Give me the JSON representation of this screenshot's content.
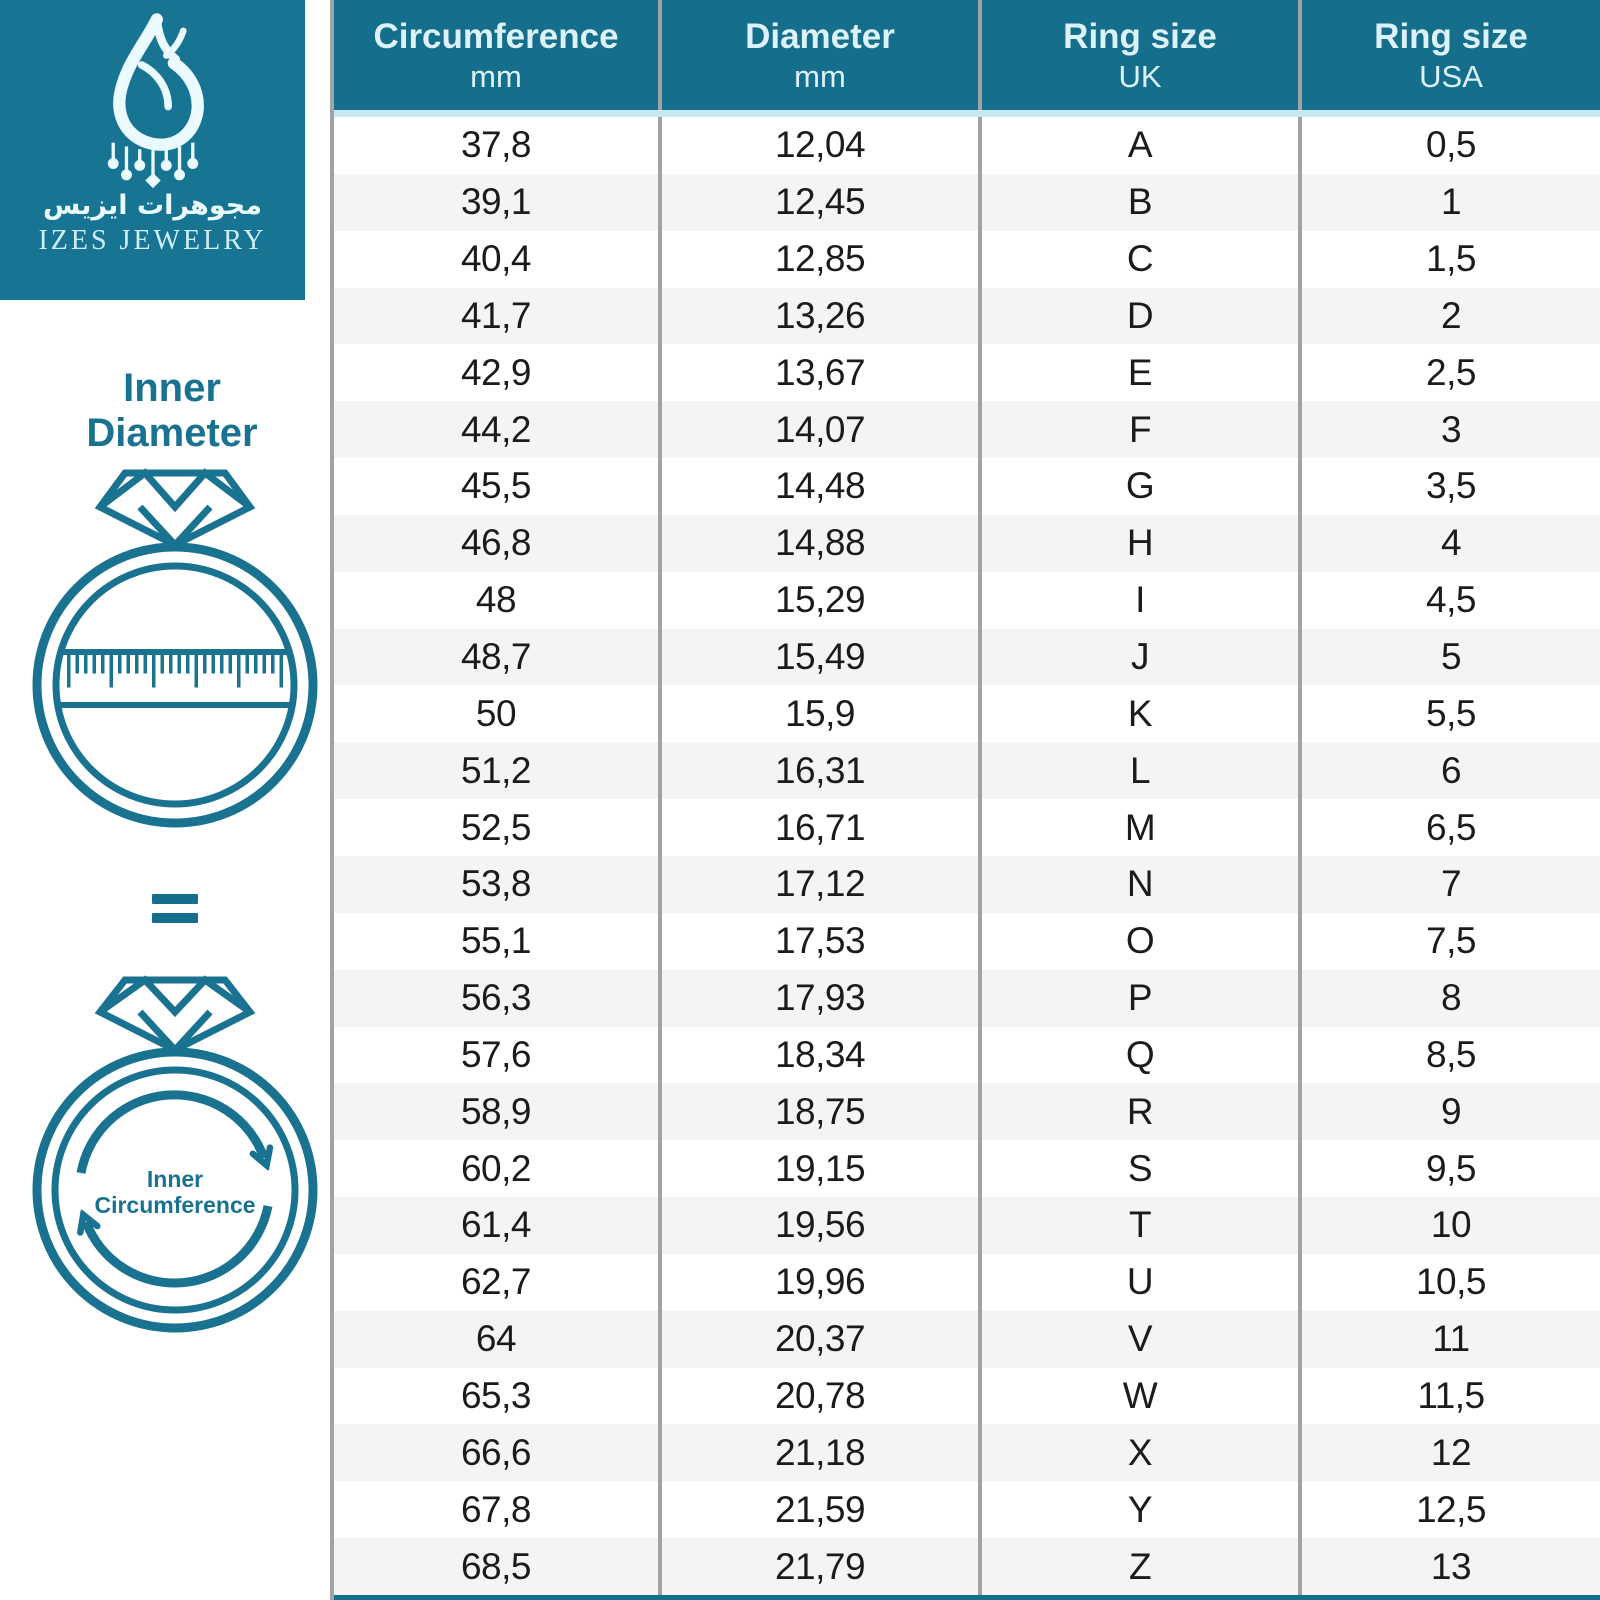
{
  "brand": {
    "name_arabic": "مجوهرات ايزيس",
    "name_english": "IZES JEWELRY"
  },
  "left_panel": {
    "inner_diameter": {
      "line1": "Inner",
      "line2": "Diameter"
    },
    "equals": "=",
    "inner_circumference": {
      "line1": "Inner",
      "line2": "Circumference"
    }
  },
  "table": {
    "columns": [
      {
        "title": "Circumference",
        "subtitle": "mm"
      },
      {
        "title": "Diameter",
        "subtitle": "mm"
      },
      {
        "title": "Ring size",
        "subtitle": "UK"
      },
      {
        "title": "Ring size",
        "subtitle": "USA"
      }
    ],
    "rows": [
      [
        "37,8",
        "12,04",
        "A",
        "0,5"
      ],
      [
        "39,1",
        "12,45",
        "B",
        "1"
      ],
      [
        "40,4",
        "12,85",
        "C",
        "1,5"
      ],
      [
        "41,7",
        "13,26",
        "D",
        "2"
      ],
      [
        "42,9",
        "13,67",
        "E",
        "2,5"
      ],
      [
        "44,2",
        "14,07",
        "F",
        "3"
      ],
      [
        "45,5",
        "14,48",
        "G",
        "3,5"
      ],
      [
        "46,8",
        "14,88",
        "H",
        "4"
      ],
      [
        "48",
        "15,29",
        "I",
        "4,5"
      ],
      [
        "48,7",
        "15,49",
        "J",
        "5"
      ],
      [
        "50",
        "15,9",
        "K",
        "5,5"
      ],
      [
        "51,2",
        "16,31",
        "L",
        "6"
      ],
      [
        "52,5",
        "16,71",
        "M",
        "6,5"
      ],
      [
        "53,8",
        "17,12",
        "N",
        "7"
      ],
      [
        "55,1",
        "17,53",
        "O",
        "7,5"
      ],
      [
        "56,3",
        "17,93",
        "P",
        "8"
      ],
      [
        "57,6",
        "18,34",
        "Q",
        "8,5"
      ],
      [
        "58,9",
        "18,75",
        "R",
        "9"
      ],
      [
        "60,2",
        "19,15",
        "S",
        "9,5"
      ],
      [
        "61,4",
        "19,56",
        "T",
        "10"
      ],
      [
        "62,7",
        "19,96",
        "U",
        "10,5"
      ],
      [
        "64",
        "20,37",
        "V",
        "11"
      ],
      [
        "65,3",
        "20,78",
        "W",
        "11,5"
      ],
      [
        "66,6",
        "21,18",
        "X",
        "12"
      ],
      [
        "67,8",
        "21,59",
        "Y",
        "12,5"
      ],
      [
        "68,5",
        "21,79",
        "Z",
        "13"
      ]
    ]
  },
  "chart_data": {
    "type": "table",
    "columns": [
      "Circumference mm",
      "Diameter mm",
      "Ring size UK",
      "Ring size USA"
    ],
    "rows": [
      [
        37.8,
        12.04,
        "A",
        0.5
      ],
      [
        39.1,
        12.45,
        "B",
        1
      ],
      [
        40.4,
        12.85,
        "C",
        1.5
      ],
      [
        41.7,
        13.26,
        "D",
        2
      ],
      [
        42.9,
        13.67,
        "E",
        2.5
      ],
      [
        44.2,
        14.07,
        "F",
        3
      ],
      [
        45.5,
        14.48,
        "G",
        3.5
      ],
      [
        46.8,
        14.88,
        "H",
        4
      ],
      [
        48,
        15.29,
        "I",
        4.5
      ],
      [
        48.7,
        15.49,
        "J",
        5
      ],
      [
        50,
        15.9,
        "K",
        5.5
      ],
      [
        51.2,
        16.31,
        "L",
        6
      ],
      [
        52.5,
        16.71,
        "M",
        6.5
      ],
      [
        53.8,
        17.12,
        "N",
        7
      ],
      [
        55.1,
        17.53,
        "O",
        7.5
      ],
      [
        56.3,
        17.93,
        "P",
        8
      ],
      [
        57.6,
        18.34,
        "Q",
        8.5
      ],
      [
        58.9,
        18.75,
        "R",
        9
      ],
      [
        60.2,
        19.15,
        "S",
        9.5
      ],
      [
        61.4,
        19.56,
        "T",
        10
      ],
      [
        62.7,
        19.96,
        "U",
        10.5
      ],
      [
        64,
        20.37,
        "V",
        11
      ],
      [
        65.3,
        20.78,
        "W",
        11.5
      ],
      [
        66.6,
        21.18,
        "X",
        12
      ],
      [
        67.8,
        21.59,
        "Y",
        12.5
      ],
      [
        68.5,
        21.79,
        "Z",
        13
      ]
    ]
  },
  "colors": {
    "teal_header": "#146E8C",
    "teal_logo_box": "#177492",
    "icon_stroke": "#1A7291",
    "header_text": "#DDF2F8",
    "row_alt": "#F4F4F4",
    "divider": "#9DA4A8",
    "header_underline": "#C9E8F2",
    "cell_text": "#1B1B1B"
  }
}
